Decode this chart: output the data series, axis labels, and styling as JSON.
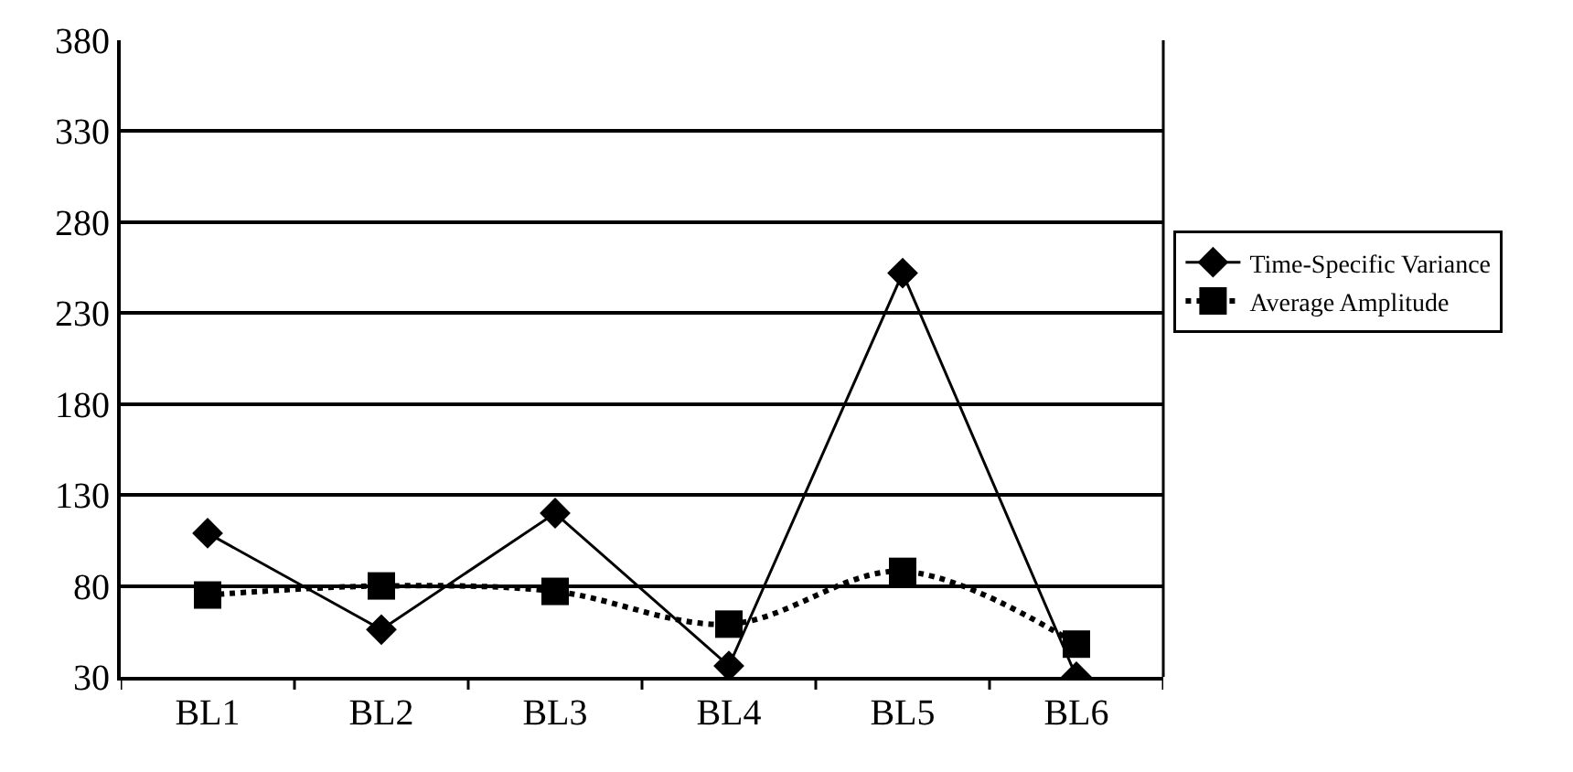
{
  "chart_data": {
    "type": "line",
    "categories": [
      "BL1",
      "BL2",
      "BL3",
      "BL4",
      "BL5",
      "BL6"
    ],
    "series": [
      {
        "name": "Time-Specific Variance",
        "color": "#000000",
        "values": [
          109,
          56,
          120,
          36,
          252,
          30
        ],
        "marker": "diamond",
        "line_style": "solid"
      },
      {
        "name": "Average Amplitude",
        "color": "#000000",
        "values": [
          75,
          80,
          77,
          59,
          88,
          48
        ],
        "marker": "square",
        "line_style": "dotted"
      }
    ],
    "ylim": [
      30,
      380
    ],
    "yticks": [
      30,
      80,
      130,
      180,
      230,
      280,
      330,
      380
    ],
    "grid": "y",
    "legend": "right"
  }
}
